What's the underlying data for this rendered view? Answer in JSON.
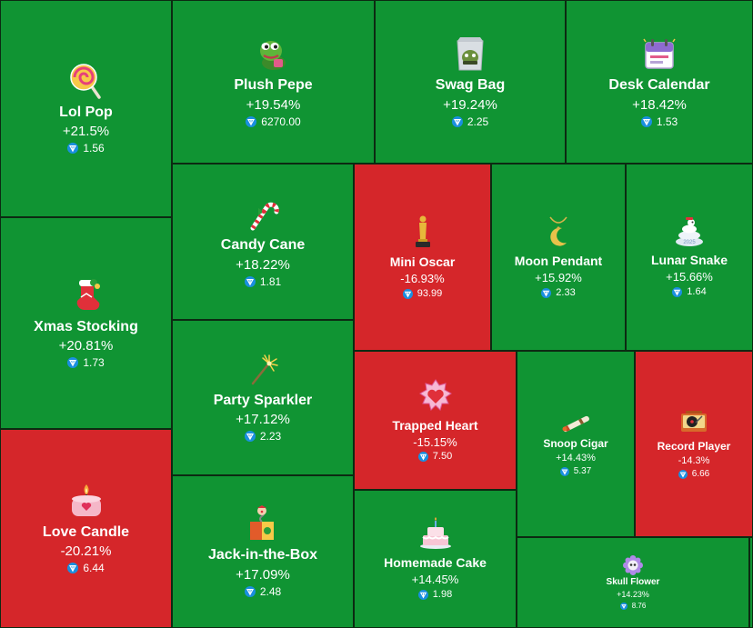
{
  "gifts": [
    {
      "name": "Lol Pop",
      "change": "+21.5%",
      "price": "1.56",
      "trend": "up",
      "icon": "lollipop-icon"
    },
    {
      "name": "Plush Pepe",
      "change": "+19.54%",
      "price": "6270.00",
      "trend": "up",
      "icon": "plush-pepe-icon"
    },
    {
      "name": "Swag Bag",
      "change": "+19.24%",
      "price": "2.25",
      "trend": "up",
      "icon": "swag-bag-icon"
    },
    {
      "name": "Desk Calendar",
      "change": "+18.42%",
      "price": "1.53",
      "trend": "up",
      "icon": "desk-calendar-icon"
    },
    {
      "name": "Candy Cane",
      "change": "+18.22%",
      "price": "1.81",
      "trend": "up",
      "icon": "candy-cane-icon"
    },
    {
      "name": "Mini Oscar",
      "change": "-16.93%",
      "price": "93.99",
      "trend": "down",
      "icon": "oscar-statuette-icon"
    },
    {
      "name": "Moon Pendant",
      "change": "+15.92%",
      "price": "2.33",
      "trend": "up",
      "icon": "moon-pendant-icon"
    },
    {
      "name": "Lunar Snake",
      "change": "+15.66%",
      "price": "1.64",
      "trend": "up",
      "icon": "lunar-snake-icon"
    },
    {
      "name": "Xmas Stocking",
      "change": "+20.81%",
      "price": "1.73",
      "trend": "up",
      "icon": "xmas-stocking-icon"
    },
    {
      "name": "Party Sparkler",
      "change": "+17.12%",
      "price": "2.23",
      "trend": "up",
      "icon": "sparkler-icon"
    },
    {
      "name": "Trapped Heart",
      "change": "-15.15%",
      "price": "7.50",
      "trend": "down",
      "icon": "trapped-heart-icon"
    },
    {
      "name": "Snoop Cigar",
      "change": "+14.43%",
      "price": "5.37",
      "trend": "up",
      "icon": "cigar-icon"
    },
    {
      "name": "Record Player",
      "change": "-14.3%",
      "price": "6.66",
      "trend": "down",
      "icon": "record-player-icon"
    },
    {
      "name": "Love Candle",
      "change": "-20.21%",
      "price": "6.44",
      "trend": "down",
      "icon": "candle-icon"
    },
    {
      "name": "Jack-in-the-Box",
      "change": "+17.09%",
      "price": "2.48",
      "trend": "up",
      "icon": "jack-in-the-box-icon"
    },
    {
      "name": "Homemade Cake",
      "change": "+14.45%",
      "price": "1.98",
      "trend": "up",
      "icon": "cake-icon"
    },
    {
      "name": "Skull Flower",
      "change": "+14.23%",
      "price": "8.76",
      "trend": "up",
      "icon": "skull-flower-icon"
    }
  ],
  "currency_icon": "ton-coin-icon",
  "colors": {
    "up": "#109433",
    "down": "#d5262a",
    "coin": "#1a8fe0"
  }
}
